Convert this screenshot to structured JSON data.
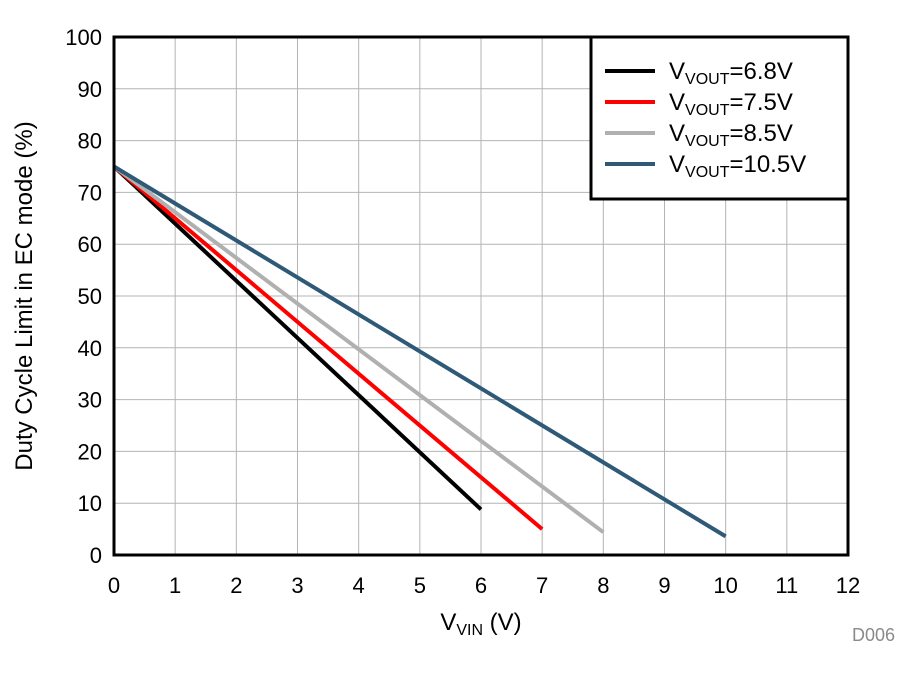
{
  "chart_data": {
    "type": "line",
    "title": "",
    "xlabel": {
      "main": "V",
      "sub": "VIN",
      "suffix": " (V)"
    },
    "ylabel": "Duty Cycle Limit in EC mode (%)",
    "xlim": [
      0,
      12
    ],
    "ylim": [
      0,
      100
    ],
    "xticks": [
      "0",
      "1",
      "2",
      "3",
      "4",
      "5",
      "6",
      "7",
      "8",
      "9",
      "10",
      "11",
      "12"
    ],
    "yticks": [
      "0",
      "10",
      "20",
      "30",
      "40",
      "50",
      "60",
      "70",
      "80",
      "90",
      "100"
    ],
    "grid": true,
    "legend_position": "top-right",
    "figure_id": "D006",
    "series": [
      {
        "name": "VVOUT=6.8V",
        "label_main": "V",
        "label_sub": "VOUT",
        "label_suffix": "=6.8V",
        "color": "#000000",
        "x": [
          0,
          6
        ],
        "y": [
          75,
          8.8
        ]
      },
      {
        "name": "VVOUT=7.5V",
        "label_main": "V",
        "label_sub": "VOUT",
        "label_suffix": "=7.5V",
        "color": "#ff0000",
        "x": [
          0,
          7
        ],
        "y": [
          75,
          5
        ]
      },
      {
        "name": "VVOUT=8.5V",
        "label_main": "V",
        "label_sub": "VOUT",
        "label_suffix": "=8.5V",
        "color": "#b0b0b0",
        "x": [
          0,
          8
        ],
        "y": [
          75,
          4.4
        ]
      },
      {
        "name": "VVOUT=10.5V",
        "label_main": "V",
        "label_sub": "VOUT",
        "label_suffix": "=10.5V",
        "color": "#2e5a78",
        "x": [
          0,
          10
        ],
        "y": [
          75,
          3.6
        ]
      }
    ]
  }
}
